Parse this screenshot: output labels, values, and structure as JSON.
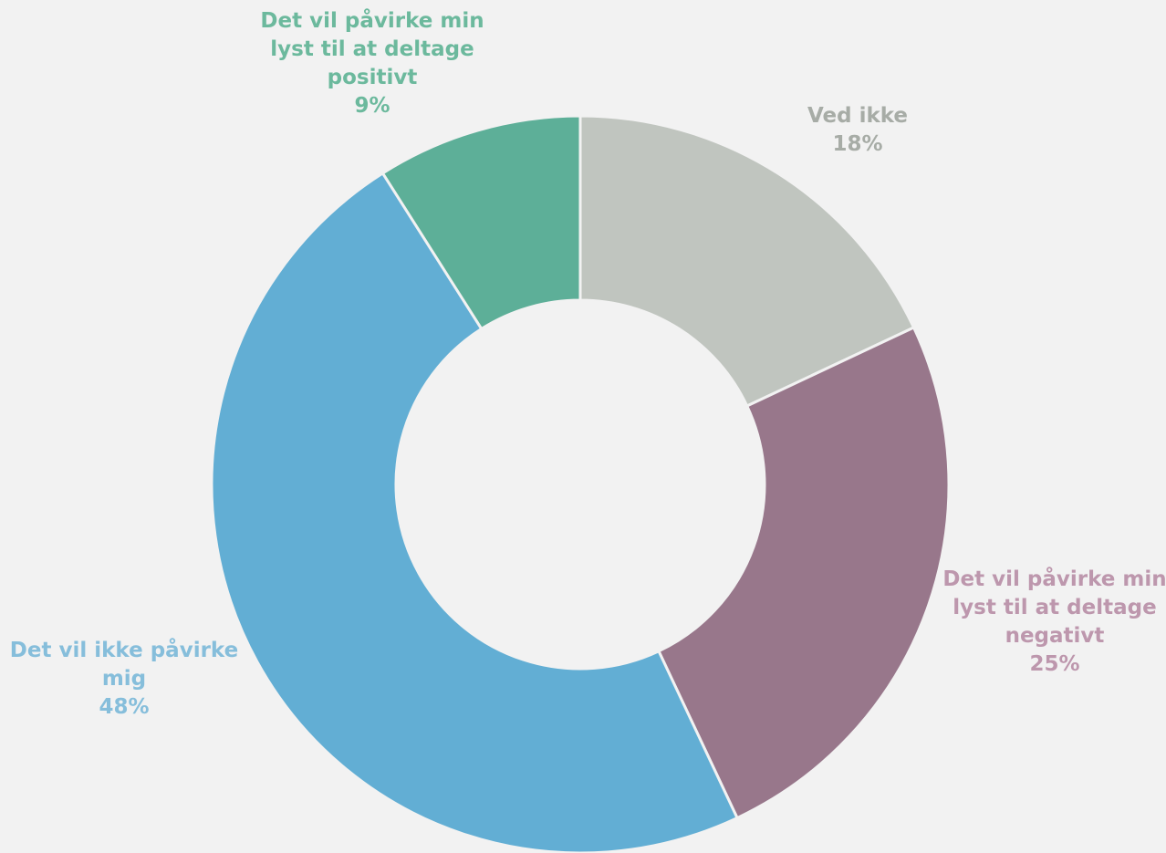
{
  "chart_data": {
    "type": "pie",
    "donut": true,
    "title": "",
    "legend": "none",
    "slices": [
      {
        "label": [
          "Ved ikke"
        ],
        "value": 18,
        "value_label": "18%",
        "color": "#c0c5bf",
        "text_color": "#a7aca6"
      },
      {
        "label": [
          "Det vil påvirke min",
          "lyst til at deltage",
          "negativt"
        ],
        "value": 25,
        "value_label": "25%",
        "color": "#98778b",
        "text_color": "#bd97ad"
      },
      {
        "label": [
          "Det vil ikke påvirke",
          "mig"
        ],
        "value": 48,
        "value_label": "48%",
        "color": "#62aed4",
        "text_color": "#86bedb"
      },
      {
        "label": [
          "Det vil påvirke min",
          "lyst til at deltage",
          "positivt"
        ],
        "value": 9,
        "value_label": "9%",
        "color": "#5daf98",
        "text_color": "#6cb99d"
      }
    ]
  }
}
